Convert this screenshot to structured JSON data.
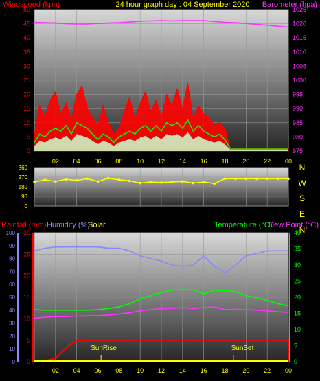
{
  "header": {
    "left_label": "Windspeed (kph)",
    "title": "24 hour graph day : 04 September 2020",
    "right_label": "Barometer (hpa)"
  },
  "colors": {
    "wind_gust": "#ff0000",
    "wind_avg": "#00ff00",
    "wind_light": "#ccffcc",
    "barometer": "#ff33ff",
    "wind_dir": "#ffff00",
    "humidity": "#8888ff",
    "temperature": "#00ff00",
    "dewpoint": "#ff33ff",
    "rainfall": "#ff0000",
    "solar": "#ffff00"
  },
  "chart_data": [
    {
      "type": "area",
      "panel": "wind",
      "title": "24 hour graph day : 04 September 2020",
      "ylabel": "Windspeed (kph)",
      "y2label": "Barometer (hpa)",
      "ylim": [
        0,
        50
      ],
      "y2lim": [
        975,
        1025
      ],
      "y_ticks": [
        "0",
        "5",
        "10",
        "15",
        "20",
        "25",
        "30",
        "35",
        "40",
        "45",
        "50"
      ],
      "y2_ticks": [
        "975",
        "980",
        "985",
        "990",
        "995",
        "1000",
        "1005",
        "1010",
        "1015",
        "1020",
        "1025"
      ],
      "x_ticks": [
        "02",
        "04",
        "06",
        "08",
        "10",
        "12",
        "14",
        "16",
        "18",
        "20",
        "22",
        "00"
      ],
      "series": [
        {
          "name": "Barometer",
          "x": [
            0,
            1,
            2,
            3,
            4,
            5,
            6,
            7,
            8,
            9,
            10,
            11,
            12,
            13,
            14,
            15,
            16,
            17,
            18,
            19,
            20,
            21,
            22,
            23,
            24
          ],
          "values": [
            1020.5,
            1020.4,
            1020.3,
            1020.0,
            1019.9,
            1019.9,
            1020.1,
            1020.3,
            1020.4,
            1020.6,
            1020.9,
            1021.0,
            1021.1,
            1021.0,
            1021.1,
            1021.1,
            1021.1,
            1020.8,
            1020.5,
            1020.4,
            1020.1,
            1019.8,
            1019.5,
            1019.1,
            1018.8
          ]
        },
        {
          "name": "Gust",
          "x": [
            0,
            0.5,
            1,
            1.5,
            2,
            2.5,
            3,
            3.5,
            4,
            4.5,
            5,
            5.5,
            6,
            6.5,
            7,
            7.5,
            8,
            8.5,
            9,
            9.5,
            10,
            10.5,
            11,
            11.5,
            12,
            12.5,
            13,
            13.5,
            14,
            14.5,
            15,
            15.5,
            16,
            16.5,
            17,
            17.5,
            18,
            18.5,
            24
          ],
          "values": [
            6,
            16,
            12,
            18,
            21,
            13,
            17,
            11,
            20,
            23,
            15,
            12,
            9,
            16,
            10,
            6,
            8,
            14,
            19,
            11,
            17,
            21,
            14,
            18,
            12,
            20,
            16,
            22,
            15,
            24,
            11,
            16,
            13,
            12,
            9,
            10,
            8,
            1,
            1
          ]
        },
        {
          "name": "Average",
          "x": [
            0,
            0.5,
            1,
            1.5,
            2,
            2.5,
            3,
            3.5,
            4,
            4.5,
            5,
            5.5,
            6,
            6.5,
            7,
            7.5,
            8,
            8.5,
            9,
            9.5,
            10,
            10.5,
            11,
            11.5,
            12,
            12.5,
            13,
            13.5,
            14,
            14.5,
            15,
            15.5,
            16,
            16.5,
            17,
            17.5,
            18,
            18.5,
            24
          ],
          "values": [
            3,
            6,
            5,
            7,
            8,
            7,
            9,
            6,
            10,
            9,
            8,
            6,
            4,
            6,
            5,
            3,
            5,
            6,
            7,
            6,
            8,
            9,
            7,
            9,
            7,
            10,
            9,
            10,
            8,
            11,
            7,
            9,
            7,
            6,
            5,
            6,
            4,
            1,
            1
          ]
        }
      ]
    },
    {
      "type": "scatter",
      "panel": "wind_direction",
      "ylim": [
        0,
        360
      ],
      "y_ticks": [
        "0",
        "90",
        "180",
        "270",
        "360"
      ],
      "compass_labels": [
        "N",
        "W",
        "S",
        "E",
        "N"
      ],
      "series": [
        {
          "name": "Direction",
          "x": [
            0,
            1,
            2,
            3,
            4,
            5,
            6,
            7,
            8,
            9,
            10,
            11,
            12,
            13,
            14,
            15,
            16,
            17,
            18,
            19,
            20,
            21,
            22,
            23,
            24
          ],
          "values": [
            225,
            245,
            230,
            250,
            240,
            255,
            230,
            260,
            245,
            235,
            215,
            225,
            220,
            225,
            230,
            215,
            225,
            210,
            255,
            255,
            255,
            255,
            255,
            255,
            255
          ]
        }
      ]
    },
    {
      "type": "line",
      "panel": "temperature",
      "left_labels": [
        "Rainfall (mm)",
        "Humidity (%)",
        "Solar"
      ],
      "right_labels": [
        "Temperature (°C)",
        "Dew Point (°C)"
      ],
      "ylim_humidity": [
        0,
        100
      ],
      "ylim_rain": [
        0,
        30
      ],
      "ylim_temp": [
        0,
        40
      ],
      "humidity_ticks": [
        "0",
        "10",
        "20",
        "30",
        "40",
        "50",
        "60",
        "70",
        "80",
        "90",
        "100"
      ],
      "rain_ticks": [
        "0",
        "5",
        "10",
        "15",
        "20",
        "25",
        "30"
      ],
      "temp_ticks": [
        "0",
        "5",
        "10",
        "15",
        "20",
        "25",
        "30",
        "35",
        "40"
      ],
      "x_ticks": [
        "02",
        "04",
        "06",
        "08",
        "10",
        "12",
        "14",
        "16",
        "18",
        "20",
        "22",
        "00"
      ],
      "annotations": [
        "SunRise",
        "SunSet"
      ],
      "series": [
        {
          "name": "Humidity",
          "x": [
            0,
            1,
            2,
            3,
            4,
            5,
            6,
            7,
            8,
            9,
            10,
            11,
            12,
            13,
            14,
            15,
            16,
            17,
            18,
            19,
            20,
            21,
            22,
            23,
            24
          ],
          "values": [
            86,
            88,
            89,
            89,
            89,
            89,
            89,
            88,
            88,
            86,
            82,
            80,
            78,
            75,
            74,
            75,
            82,
            74,
            69,
            75,
            82,
            84,
            86,
            86,
            86
          ]
        },
        {
          "name": "Temperature",
          "x": [
            0,
            1,
            2,
            3,
            4,
            5,
            6,
            7,
            8,
            9,
            10,
            11,
            12,
            13,
            14,
            15,
            16,
            17,
            18,
            19,
            20,
            21,
            22,
            23,
            24
          ],
          "values": [
            16.2,
            16.0,
            16.0,
            16.0,
            16.0,
            16.0,
            16.2,
            16.5,
            17.0,
            18.0,
            19.5,
            20.5,
            21.5,
            22.2,
            22.5,
            22.3,
            21.0,
            22.2,
            22.0,
            21.8,
            20.5,
            19.8,
            19.0,
            18.0,
            17.3
          ]
        },
        {
          "name": "Dew Point",
          "x": [
            0,
            1,
            2,
            3,
            4,
            5,
            6,
            7,
            8,
            9,
            10,
            11,
            12,
            13,
            14,
            15,
            16,
            17,
            18,
            19,
            20,
            21,
            22,
            23,
            24
          ],
          "values": [
            13.5,
            13.8,
            14.0,
            14.0,
            14.2,
            14.2,
            14.3,
            14.5,
            14.8,
            15.2,
            15.8,
            16.2,
            16.5,
            16.5,
            16.8,
            16.5,
            16.8,
            17.0,
            16.2,
            16.3,
            16.2,
            16.0,
            15.8,
            15.5,
            15.3
          ]
        },
        {
          "name": "Rainfall",
          "x": [
            0,
            1,
            2,
            3,
            3.5,
            4,
            5,
            6,
            12,
            18,
            24
          ],
          "values": [
            0,
            0.2,
            0.8,
            3.2,
            4.3,
            4.8,
            5.0,
            5.0,
            5.0,
            5.0,
            5.0
          ]
        }
      ]
    }
  ]
}
